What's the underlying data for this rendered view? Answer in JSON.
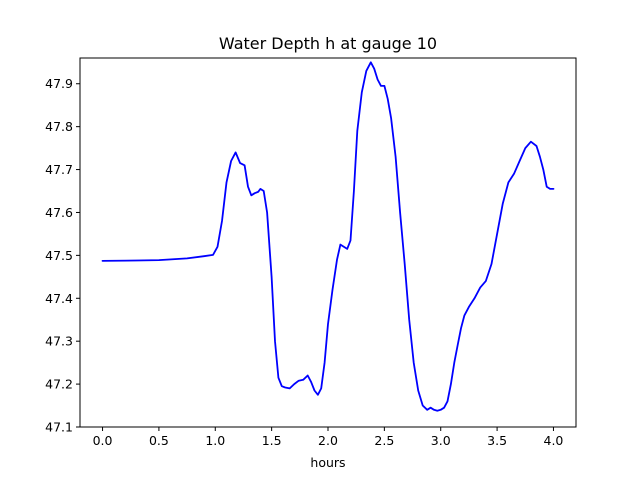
{
  "chart_data": {
    "type": "line",
    "title": "Water Depth h at gauge 10",
    "xlabel": "hours",
    "ylabel": "",
    "xlim": [
      -0.2,
      4.2
    ],
    "ylim": [
      47.1,
      47.96
    ],
    "x_ticks": [
      0.0,
      0.5,
      1.0,
      1.5,
      2.0,
      2.5,
      3.0,
      3.5,
      4.0
    ],
    "x_tick_labels": [
      "0.0",
      "0.5",
      "1.0",
      "1.5",
      "2.0",
      "2.5",
      "3.0",
      "3.5",
      "4.0"
    ],
    "y_ticks": [
      47.1,
      47.2,
      47.3,
      47.4,
      47.5,
      47.6,
      47.7,
      47.8,
      47.9
    ],
    "y_tick_labels": [
      "47.1",
      "47.2",
      "47.3",
      "47.4",
      "47.5",
      "47.6",
      "47.7",
      "47.8",
      "47.9"
    ],
    "grid": false,
    "legend": "none",
    "series": [
      {
        "color": "#0000ff",
        "x": [
          0.0,
          0.3,
          0.5,
          0.75,
          0.9,
          0.98,
          1.02,
          1.06,
          1.1,
          1.14,
          1.18,
          1.22,
          1.26,
          1.29,
          1.32,
          1.35,
          1.38,
          1.4,
          1.43,
          1.46,
          1.5,
          1.53,
          1.56,
          1.59,
          1.62,
          1.66,
          1.7,
          1.74,
          1.78,
          1.82,
          1.85,
          1.88,
          1.91,
          1.94,
          1.97,
          2.0,
          2.04,
          2.08,
          2.11,
          2.14,
          2.17,
          2.2,
          2.23,
          2.26,
          2.3,
          2.34,
          2.38,
          2.41,
          2.44,
          2.47,
          2.5,
          2.53,
          2.56,
          2.6,
          2.64,
          2.68,
          2.72,
          2.76,
          2.8,
          2.84,
          2.88,
          2.91,
          2.94,
          2.97,
          3.0,
          3.03,
          3.06,
          3.09,
          3.12,
          3.15,
          3.18,
          3.21,
          3.25,
          3.3,
          3.35,
          3.4,
          3.45,
          3.5,
          3.55,
          3.6,
          3.65,
          3.7,
          3.75,
          3.8,
          3.85,
          3.88,
          3.91,
          3.94,
          3.97,
          4.0
        ],
        "y": [
          47.487,
          47.488,
          47.489,
          47.493,
          47.498,
          47.501,
          47.52,
          47.58,
          47.67,
          47.72,
          47.74,
          47.715,
          47.71,
          47.66,
          47.64,
          47.645,
          47.648,
          47.655,
          47.65,
          47.6,
          47.45,
          47.3,
          47.215,
          47.195,
          47.192,
          47.19,
          47.2,
          47.208,
          47.21,
          47.22,
          47.205,
          47.185,
          47.175,
          47.19,
          47.25,
          47.34,
          47.42,
          47.49,
          47.525,
          47.52,
          47.515,
          47.535,
          47.65,
          47.79,
          47.88,
          47.93,
          47.95,
          47.935,
          47.91,
          47.895,
          47.895,
          47.865,
          47.82,
          47.73,
          47.6,
          47.48,
          47.35,
          47.25,
          47.185,
          47.15,
          47.14,
          47.145,
          47.14,
          47.138,
          47.14,
          47.145,
          47.16,
          47.2,
          47.25,
          47.29,
          47.33,
          47.36,
          47.38,
          47.4,
          47.425,
          47.44,
          47.48,
          47.55,
          47.62,
          47.67,
          47.69,
          47.72,
          47.75,
          47.765,
          47.755,
          47.73,
          47.7,
          47.66,
          47.655,
          47.655
        ]
      }
    ]
  }
}
